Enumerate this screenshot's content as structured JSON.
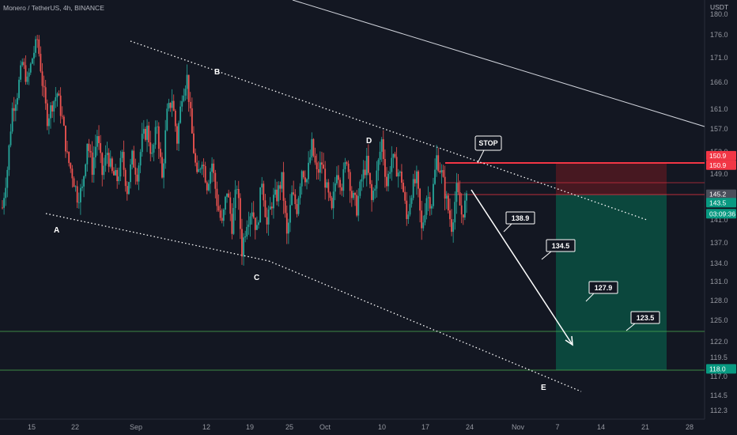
{
  "header": {
    "symbol": "Monero / TetherUS, 4h, BINANCE",
    "currency": "USDT"
  },
  "colors": {
    "background": "#131722",
    "up": "#26a69a",
    "down": "#ef5350",
    "axis_text": "#9598a1",
    "trendline": "#ffffff",
    "stop_line": "#f23645",
    "target_line": "#4caf50",
    "profit_zone": "#0b4a3f",
    "loss_zone": "#4a1822"
  },
  "chart_data": {
    "type": "candlestick",
    "y_ticks": [
      "180.0",
      "176.0",
      "171.0",
      "166.0",
      "161.0",
      "157.0",
      "153.0",
      "149.0",
      "145.0",
      "141.0",
      "137.0",
      "134.0",
      "131.0",
      "128.0",
      "125.0",
      "122.0",
      "119.5",
      "117.0",
      "114.5",
      "112.3"
    ],
    "x_ticks": [
      "15",
      "22",
      "Sep",
      "12",
      "19",
      "25",
      "Oct",
      "10",
      "17",
      "24",
      "Nov",
      "7",
      "14",
      "21",
      "28"
    ],
    "wave_labels": [
      {
        "label": "A",
        "price": 141.0
      },
      {
        "label": "B",
        "price": 167.5
      },
      {
        "label": "C",
        "price": 133.5
      },
      {
        "label": "D",
        "price": 153.5
      },
      {
        "label": "E",
        "price": 116.5
      }
    ],
    "price_path": [
      143,
      150,
      161,
      164,
      170,
      166,
      171,
      175,
      166,
      159,
      162,
      164,
      159,
      152,
      149,
      145,
      146,
      155,
      150,
      156,
      149,
      153,
      149,
      148,
      152,
      146,
      152,
      149,
      155,
      157,
      152,
      158,
      148,
      160,
      163,
      155,
      164,
      167,
      156,
      148,
      152,
      147,
      151,
      144,
      140,
      146,
      140,
      147,
      136,
      141,
      143,
      139,
      148,
      140,
      144,
      145,
      148,
      138,
      145,
      143,
      150,
      148,
      154,
      149,
      151,
      146,
      142,
      150,
      147,
      152,
      145,
      143,
      148,
      151,
      144,
      149,
      155,
      147,
      152,
      150,
      148,
      141,
      146,
      148,
      139,
      145,
      144,
      152,
      149,
      144,
      140,
      146,
      142,
      144
    ],
    "callouts": [
      {
        "text": "STOP",
        "price": 155.5
      },
      {
        "text": "138.9",
        "price": 139.5
      },
      {
        "text": "134.5",
        "price": 136.0
      },
      {
        "text": "127.9",
        "price": 130.0
      },
      {
        "text": "123.5",
        "price": 126.0
      }
    ],
    "price_tags": [
      {
        "value": "150.9",
        "price": 152.3,
        "color": "#f23645"
      },
      {
        "value": "150.9",
        "price": 150.6,
        "color": "#f23645"
      },
      {
        "value": "145.2",
        "price": 145.2,
        "color": "#4a4e5a"
      },
      {
        "value": "143.5",
        "price": 143.8,
        "color": "#089981"
      },
      {
        "value": "03:09:36",
        "price": 142.0,
        "color": "#089981"
      },
      {
        "value": "118.0",
        "price": 118.0,
        "color": "#089981"
      }
    ],
    "levels": {
      "stop": 150.9,
      "entry": 145.2,
      "target_upper": 123.5,
      "target_lower": 118.0
    }
  }
}
